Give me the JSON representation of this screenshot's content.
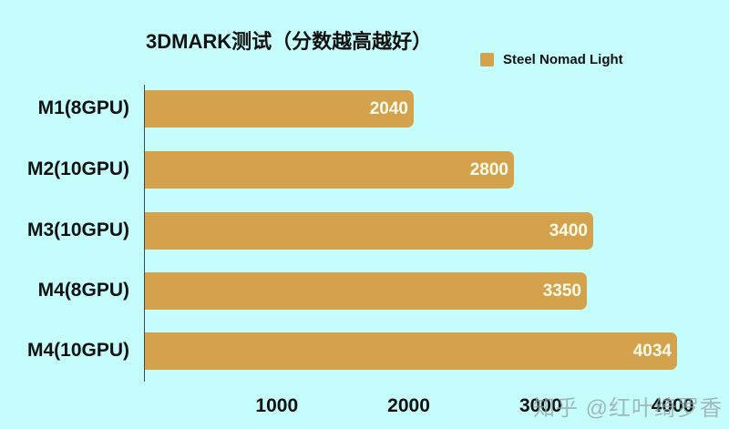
{
  "chart_data": {
    "type": "bar",
    "orientation": "horizontal",
    "title": "3DMARK测试（分数越高越好）",
    "categories": [
      "M1(8GPU)",
      "M2(10GPU)",
      "M3(10GPU)",
      "M4(8GPU)",
      "M4(10GPU)"
    ],
    "series": [
      {
        "name": "Steel Nomad Light",
        "values": [
          2040,
          2800,
          3400,
          3350,
          4034
        ],
        "color": "#d4a24c"
      }
    ],
    "xlabel": "",
    "ylabel": "",
    "xlim": [
      0,
      4200
    ],
    "xticks": [
      1000,
      2000,
      3000,
      4000
    ],
    "grid": false,
    "legend_position": "top-right",
    "data_labels": true
  },
  "title": "3DMARK测试（分数越高越好）",
  "legend": {
    "label": "Steel Nomad Light",
    "color": "#d4a24c"
  },
  "bars": [
    {
      "label": "M1(8GPU)",
      "value": "2040"
    },
    {
      "label": "M2(10GPU)",
      "value": "2800"
    },
    {
      "label": "M3(10GPU)",
      "value": "3400"
    },
    {
      "label": "M4(8GPU)",
      "value": "3350"
    },
    {
      "label": "M4(10GPU)",
      "value": "4034"
    }
  ],
  "ticks": [
    "1000",
    "2000",
    "3000",
    "4000"
  ],
  "watermark": "知乎 @红叶绮罗香",
  "colors": {
    "background": "#c4fdfc",
    "bar": "#d4a24c",
    "text": "#111111",
    "bar_text": "#fffbe8"
  }
}
